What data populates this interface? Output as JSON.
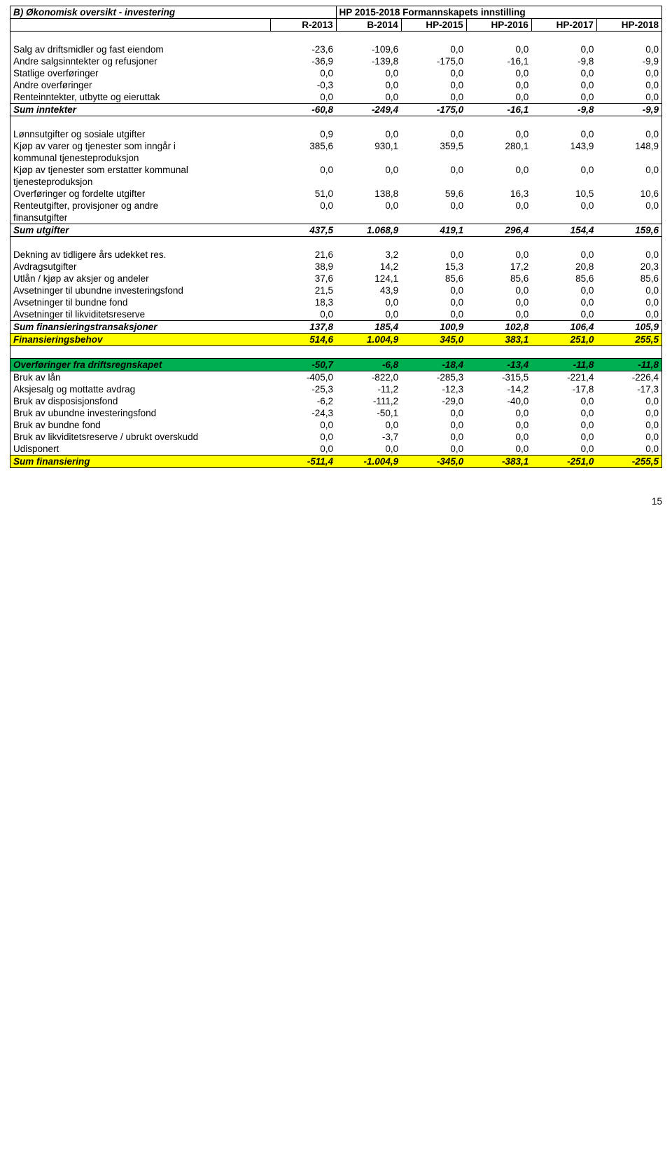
{
  "title_left": "B) Økonomisk oversikt - investering",
  "title_right": "HP 2015-2018 Formannskapets innstilling",
  "headers": [
    "R-2013",
    "B-2014",
    "HP-2015",
    "HP-2016",
    "HP-2017",
    "HP-2018"
  ],
  "rows": [
    {
      "label": "Salg av driftsmidler og fast eiendom",
      "v": [
        "-23,6",
        "-109,6",
        "0,0",
        "0,0",
        "0,0",
        "0,0"
      ]
    },
    {
      "label": "Andre salgsinntekter og refusjoner",
      "v": [
        "-36,9",
        "-139,8",
        "-175,0",
        "-16,1",
        "-9,8",
        "-9,9"
      ]
    },
    {
      "label": "Statlige overføringer",
      "v": [
        "0,0",
        "0,0",
        "0,0",
        "0,0",
        "0,0",
        "0,0"
      ]
    },
    {
      "label": "Andre overføringer",
      "v": [
        "-0,3",
        "0,0",
        "0,0",
        "0,0",
        "0,0",
        "0,0"
      ]
    },
    {
      "label": "Renteinntekter, utbytte og eieruttak",
      "v": [
        "0,0",
        "0,0",
        "0,0",
        "0,0",
        "0,0",
        "0,0"
      ]
    }
  ],
  "sum_inntekter": {
    "label": "Sum inntekter",
    "v": [
      "-60,8",
      "-249,4",
      "-175,0",
      "-16,1",
      "-9,8",
      "-9,9"
    ]
  },
  "rows2": [
    {
      "label": "Lønnsutgifter og sosiale utgifter",
      "v": [
        "0,9",
        "0,0",
        "0,0",
        "0,0",
        "0,0",
        "0,0"
      ]
    },
    {
      "label": "Kjøp av varer og tjenester som inngår i kommunal tjenesteproduksjon",
      "v": [
        "385,6",
        "930,1",
        "359,5",
        "280,1",
        "143,9",
        "148,9"
      ],
      "wrap": true
    },
    {
      "label": "Kjøp av tjenester som erstatter kommunal tjenesteproduksjon",
      "v": [
        "0,0",
        "0,0",
        "0,0",
        "0,0",
        "0,0",
        "0,0"
      ],
      "wrap": true
    },
    {
      "label": "Overføringer og fordelte utgifter",
      "v": [
        "51,0",
        "138,8",
        "59,6",
        "16,3",
        "10,5",
        "10,6"
      ]
    },
    {
      "label": "Renteutgifter, provisjoner og andre finansutgifter",
      "v": [
        "0,0",
        "0,0",
        "0,0",
        "0,0",
        "0,0",
        "0,0"
      ],
      "wrap": true
    }
  ],
  "sum_utgifter": {
    "label": "Sum utgifter",
    "v": [
      "437,5",
      "1.068,9",
      "419,1",
      "296,4",
      "154,4",
      "159,6"
    ]
  },
  "rows3": [
    {
      "label": "Dekning av tidligere års udekket res.",
      "v": [
        "21,6",
        "3,2",
        "0,0",
        "0,0",
        "0,0",
        "0,0"
      ]
    },
    {
      "label": "Avdragsutgifter",
      "v": [
        "38,9",
        "14,2",
        "15,3",
        "17,2",
        "20,8",
        "20,3"
      ]
    },
    {
      "label": "Utlån / kjøp av aksjer og andeler",
      "v": [
        "37,6",
        "124,1",
        "85,6",
        "85,6",
        "85,6",
        "85,6"
      ]
    },
    {
      "label": "Avsetninger til ubundne investeringsfond",
      "v": [
        "21,5",
        "43,9",
        "0,0",
        "0,0",
        "0,0",
        "0,0"
      ]
    },
    {
      "label": "Avsetninger til bundne fond",
      "v": [
        "18,3",
        "0,0",
        "0,0",
        "0,0",
        "0,0",
        "0,0"
      ]
    },
    {
      "label": "Avsetninger til likviditetsreserve",
      "v": [
        "0,0",
        "0,0",
        "0,0",
        "0,0",
        "0,0",
        "0,0"
      ]
    }
  ],
  "sum_fintrans": {
    "label": "Sum finansieringstransaksjoner",
    "v": [
      "137,8",
      "185,4",
      "100,9",
      "102,8",
      "106,4",
      "105,9"
    ]
  },
  "finbehov": {
    "label": "Finansieringsbehov",
    "v": [
      "514,6",
      "1.004,9",
      "345,0",
      "383,1",
      "251,0",
      "255,5"
    ]
  },
  "overf_drift": {
    "label": "Overføringer fra driftsregnskapet",
    "v": [
      "-50,7",
      "-6,8",
      "-18,4",
      "-13,4",
      "-11,8",
      "-11,8"
    ]
  },
  "rows4": [
    {
      "label": "Bruk av lån",
      "v": [
        "-405,0",
        "-822,0",
        "-285,3",
        "-315,5",
        "-221,4",
        "-226,4"
      ]
    },
    {
      "label": "Aksjesalg og mottatte avdrag",
      "v": [
        "-25,3",
        "-11,2",
        "-12,3",
        "-14,2",
        "-17,8",
        "-17,3"
      ]
    },
    {
      "label": "Bruk av disposisjonsfond",
      "v": [
        "-6,2",
        "-111,2",
        "-29,0",
        "-40,0",
        "0,0",
        "0,0"
      ]
    },
    {
      "label": "Bruk av ubundne investeringsfond",
      "v": [
        "-24,3",
        "-50,1",
        "0,0",
        "0,0",
        "0,0",
        "0,0"
      ]
    },
    {
      "label": "Bruk av bundne fond",
      "v": [
        "0,0",
        "0,0",
        "0,0",
        "0,0",
        "0,0",
        "0,0"
      ]
    },
    {
      "label": "Bruk av likviditetsreserve / ubrukt overskudd",
      "v": [
        "0,0",
        "-3,7",
        "0,0",
        "0,0",
        "0,0",
        "0,0"
      ]
    },
    {
      "label": "Udisponert",
      "v": [
        "0,0",
        "0,0",
        "0,0",
        "0,0",
        "0,0",
        "0,0"
      ]
    }
  ],
  "sum_fin": {
    "label": "Sum finansiering",
    "v": [
      "-511,4",
      "-1.004,9",
      "-345,0",
      "-383,1",
      "-251,0",
      "-255,5"
    ]
  },
  "page_number": "15"
}
